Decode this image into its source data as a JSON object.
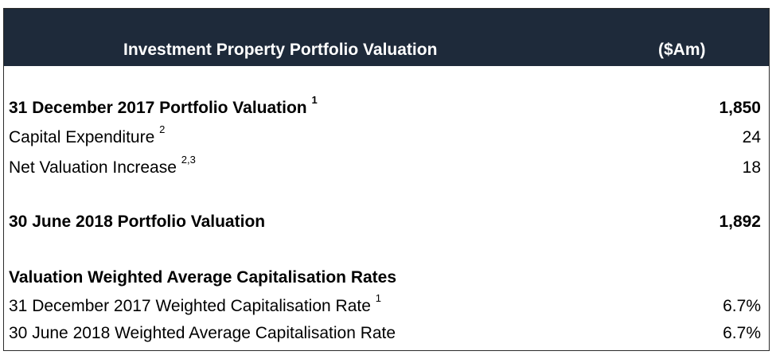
{
  "header": {
    "title": "Investment Property Portfolio Valuation",
    "unit": "($Am)"
  },
  "rows": [
    {
      "label": "31 December 2017 Portfolio Valuation",
      "note": "1",
      "value": "1,850"
    },
    {
      "label": "Capital Expenditure",
      "note": "2",
      "value": "24"
    },
    {
      "label": "Net Valuation Increase",
      "note": "2,3",
      "value": "18"
    },
    {
      "label": "30 June 2018 Portfolio Valuation",
      "value": "1,892"
    }
  ],
  "cap_rates": {
    "heading": "Valuation Weighted Average Capitalisation Rates",
    "rows": [
      {
        "label": "31 December 2017 Weighted Capitalisation Rate",
        "note": "1",
        "value": "6.7%"
      },
      {
        "label": "30 June 2018 Weighted Average Capitalisation Rate",
        "value": "6.7%"
      }
    ]
  },
  "colors": {
    "header_bg": "#1e2a3a",
    "header_text": "#ffffff"
  }
}
